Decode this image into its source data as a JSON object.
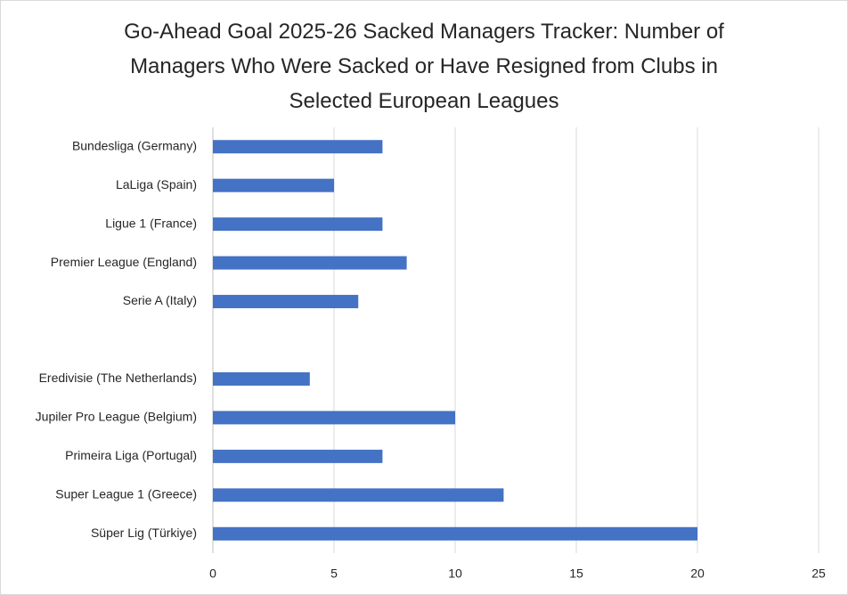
{
  "chart_data": {
    "type": "bar",
    "orientation": "horizontal",
    "title": "Go-Ahead Goal 2025-26 Sacked Managers Tracker: Number of Managers Who Were Sacked or Have Resigned from Clubs in Selected European Leagues",
    "categories": [
      "Bundesliga (Germany)",
      "LaLiga (Spain)",
      "Ligue 1 (France)",
      "Premier League (England)",
      "Serie A (Italy)",
      null,
      "Eredivisie (The Netherlands)",
      "Jupiler Pro League (Belgium)",
      "Primeira Liga (Portugal)",
      "Super League 1 (Greece)",
      "Süper Lig (Türkiye)"
    ],
    "values": [
      7,
      5,
      7,
      8,
      6,
      null,
      4,
      10,
      7,
      12,
      20
    ],
    "color": "#4472c4",
    "xlim": [
      0,
      25
    ],
    "xticks": [
      0,
      5,
      10,
      15,
      20,
      25
    ],
    "grid": true
  }
}
